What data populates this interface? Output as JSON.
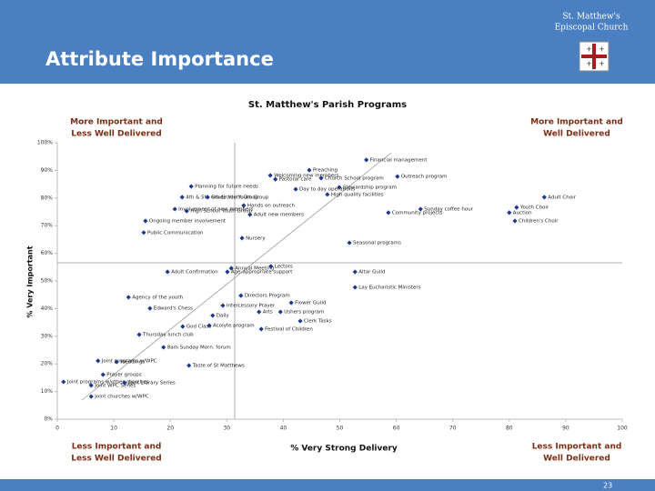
{
  "header": {
    "org": [
      "St. Matthew's",
      "Episcopal Church"
    ],
    "title": "Attribute Importance"
  },
  "footer": {
    "page": "23"
  },
  "chart_data": {
    "type": "scatter",
    "title": "St. Matthew's Parish Programs",
    "x_label": "% Very Strong Delivery",
    "y_label": "% Very Important",
    "annotations": [
      [
        "More Important and",
        "Less Well Delivered"
      ],
      [
        "More Important and",
        "Well Delivered"
      ],
      [
        "Less Important and",
        "Less Well Delivered"
      ],
      [
        "Less Important and",
        "Well Delivered"
      ]
    ],
    "color": "#1f3a8a",
    "xlim": [
      0,
      100
    ],
    "xticks": [
      0,
      10,
      20,
      30,
      40,
      50,
      60,
      70,
      80,
      90,
      100
    ],
    "ylim": [
      0,
      100
    ],
    "yticks": [
      {
        "value": 0,
        "label": "0%"
      },
      {
        "value": 10,
        "label": "10%"
      },
      {
        "value": 20,
        "label": "20%"
      },
      {
        "value": 30,
        "label": "30%"
      },
      {
        "value": 40,
        "label": "40%"
      },
      {
        "value": 50,
        "label": "50%"
      },
      {
        "value": 60,
        "label": "60%"
      },
      {
        "value": 70,
        "label": "70%"
      },
      {
        "value": 80,
        "label": "80%"
      },
      {
        "value": 90,
        "label": "90%"
      },
      {
        "value": 100,
        "label": "100%"
      }
    ],
    "labels": [
      "Financial management",
      "Preaching",
      "Outreach program",
      "Welcoming new members",
      "Pastoral care",
      "Church School program",
      "Stewardship program",
      "Planning for future needs",
      "Day to day operations",
      "High quality facilities",
      "4th & 5th Grade Youth Group",
      "6th Grade Youth Group",
      "Adult Choir",
      "Involvement of new members",
      "Hands on outreach",
      "High School Youth Group",
      "Adult new members",
      "Community projects",
      "Sunday coffee hour",
      "Youth Choir",
      "Auction",
      "Children's Choir",
      "Ongoing member involvement",
      "Public Communication",
      "Nursery",
      "Seasonal programs",
      "Annual Meeting",
      "Lectors",
      "Adult Confirmation",
      "Age-appropriate support",
      "Altar Guild",
      "Lay Eucharistic Ministers",
      "Agency of the youth",
      "Directors Program",
      "Flower Guild",
      "Intercessory Prayer",
      "Edward's Chess",
      "Arts",
      "Ushers program",
      "Daily",
      "Clerk Tasks",
      "God Class",
      "Acolyte program",
      "Festival of Children",
      "Thursday lunch club",
      "8am Sunday Morn. forum",
      "Joint programs w/WPC",
      "Weddings",
      "Taste of St Matthews",
      "Prayer groups",
      "Joint programs w/other churches",
      "Joint Library Series",
      "Joint WPC Series",
      "Joint churches w/WPC"
    ],
    "x": [
      54.7,
      44.6,
      60.2,
      37.7,
      38.6,
      46.7,
      49.9,
      23.7,
      42.2,
      47.8,
      22.1,
      26.6,
      86.2,
      20.8,
      33.0,
      22.9,
      34.1,
      58.6,
      64.3,
      81.3,
      80.0,
      81.0,
      15.6,
      15.3,
      32.7,
      51.7,
      30.8,
      37.8,
      19.5,
      30.1,
      52.7,
      52.7,
      12.6,
      32.5,
      41.4,
      29.3,
      16.4,
      35.7,
      39.5,
      27.5,
      43.0,
      22.2,
      26.9,
      36.1,
      14.5,
      18.8,
      7.2,
      10.5,
      23.3,
      8.1,
      1.1,
      11.9,
      6.0,
      6.0
    ],
    "values": [
      93.8,
      90.1,
      87.8,
      88.2,
      86.8,
      87.2,
      83.9,
      84.2,
      83.2,
      81.3,
      80.3,
      80.3,
      80.3,
      76.0,
      77.3,
      75.3,
      74.0,
      74.7,
      76.0,
      76.6,
      74.7,
      71.7,
      71.7,
      67.5,
      65.5,
      63.8,
      54.6,
      55.3,
      53.3,
      53.3,
      53.3,
      47.7,
      44.1,
      44.7,
      42.1,
      41.1,
      40.1,
      38.8,
      38.8,
      37.5,
      35.5,
      33.5,
      33.9,
      32.6,
      30.6,
      26.0,
      21.1,
      20.7,
      19.4,
      16.1,
      13.5,
      13.2,
      12.2,
      8.2
    ]
  }
}
